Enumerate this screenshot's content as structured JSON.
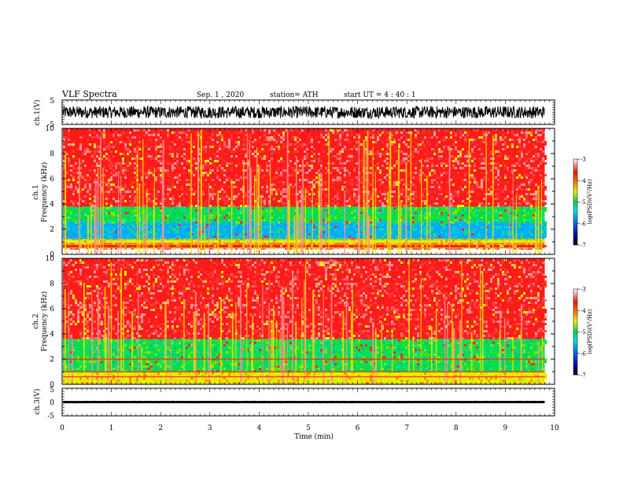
{
  "header": {
    "title": "VLF Spectra",
    "date": "Sep. 1  , 2020",
    "station": "station= ATH",
    "start_ut": "start  UT =   4 : 40 : 1"
  },
  "chart_data": [
    {
      "type": "line",
      "panel": "ch1-waveform",
      "ylabel": "ch.1(V)",
      "ylim": [
        -5,
        5
      ],
      "yticks": [
        "5",
        "-5"
      ],
      "xlim": [
        0,
        10
      ],
      "x_data_end": 9.8,
      "approx_amplitude": [
        -2.5,
        2.5
      ]
    },
    {
      "type": "heatmap",
      "panel": "ch1-spectrogram",
      "ylabel_channel": "ch.1",
      "ylabel": "Frequency  (kHz)",
      "ylim": [
        0,
        10
      ],
      "yticks": [
        "0",
        "2",
        "4",
        "6",
        "8",
        "10"
      ],
      "xlim": [
        0,
        10
      ],
      "x_data_end": 9.8,
      "colorbar": {
        "label": "log(PSD)(V²/Hz)",
        "ticks": [
          "-3",
          "-4",
          "-5",
          "-6",
          "-7"
        ],
        "range": [
          -7,
          -3
        ]
      },
      "colors": {
        "high": "#ff1a1a",
        "mid": "#e8f000",
        "low": "#00dd55",
        "lowest": "#00a0ff"
      },
      "bands_khz": [
        {
          "from": 0.5,
          "to": 0.9,
          "level": "high"
        },
        {
          "from": 0.9,
          "to": 1.2,
          "level": "mid"
        },
        {
          "from": 1.2,
          "to": 2.6,
          "level": "lowest"
        },
        {
          "from": 2.6,
          "to": 3.8,
          "level": "low"
        },
        {
          "from": 3.8,
          "to": 10,
          "level": "high"
        }
      ]
    },
    {
      "type": "heatmap",
      "panel": "ch2-spectrogram",
      "ylabel_channel": "ch.2",
      "ylabel": "Frequency  (kHz)",
      "ylim": [
        0,
        10
      ],
      "yticks": [
        "0",
        "2",
        "4",
        "6",
        "8",
        "10"
      ],
      "xlim": [
        0,
        10
      ],
      "x_data_end": 9.8,
      "colorbar": {
        "label": "log(PSD)(V²/Hz)",
        "ticks": [
          "-3",
          "-4",
          "-5",
          "-6",
          "-7"
        ],
        "range": [
          -7,
          -3
        ]
      },
      "bands_khz": [
        {
          "from": 0,
          "to": 1.0,
          "level": "mid"
        },
        {
          "from": 1.0,
          "to": 3.6,
          "level": "low"
        },
        {
          "from": 3.6,
          "to": 10,
          "level": "high"
        }
      ]
    },
    {
      "type": "line",
      "panel": "ch3-waveform",
      "ylabel": "ch.3(V)",
      "ylim": [
        -5,
        5
      ],
      "yticks": [
        "5",
        "0",
        "-5"
      ],
      "xlim": [
        0,
        10
      ],
      "x_data_end": 9.8,
      "approx_amplitude": [
        -0.4,
        0.4
      ]
    }
  ],
  "x_axis": {
    "label": "Time  (min)",
    "ticks": [
      "0",
      "1",
      "2",
      "3",
      "4",
      "5",
      "6",
      "7",
      "8",
      "9",
      "10"
    ]
  }
}
